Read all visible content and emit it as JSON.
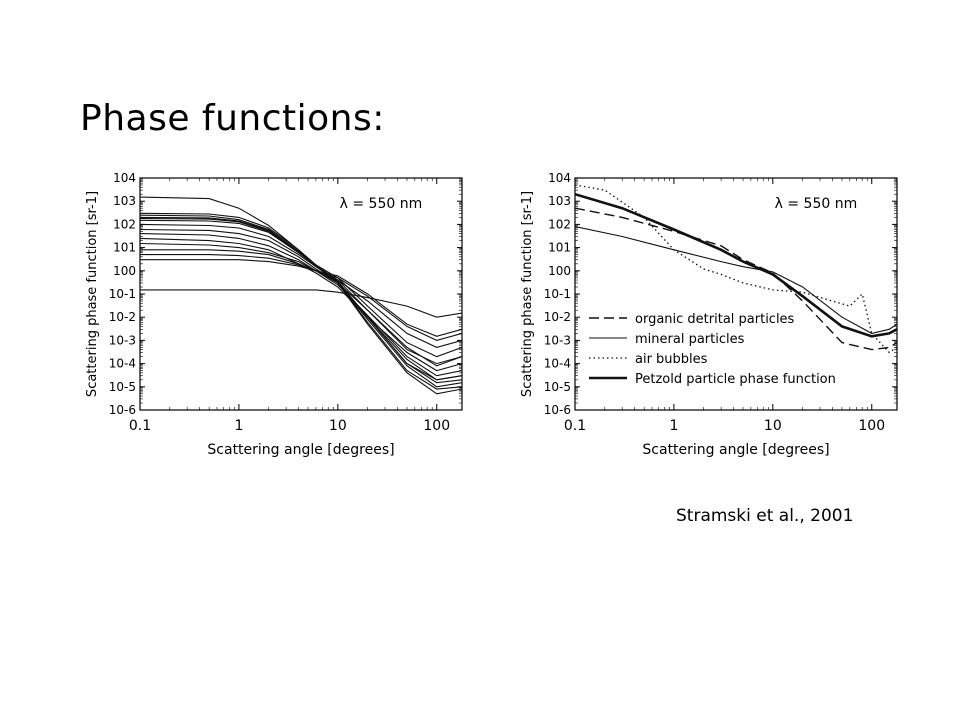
{
  "slide": {
    "title": "Phase functions:",
    "citation": "Stramski et al., 2001"
  },
  "chart_data": [
    {
      "type": "line",
      "xscale": "log",
      "yscale": "log",
      "xlim": [
        0.1,
        180
      ],
      "ylim": [
        1e-06,
        10000.0
      ],
      "xticks": [
        "0.1",
        "1",
        "10",
        "100"
      ],
      "yticks": [
        "10-6",
        "10-5",
        "10-4",
        "10-3",
        "10-2",
        "10-1",
        "100",
        "101",
        "102",
        "103",
        "104"
      ],
      "xlabel": "Scattering angle  [degrees]",
      "ylabel": "Scattering phase function  [sr-1]",
      "annotation": "λ = 550 nm",
      "series": [
        {
          "x": [
            0.1,
            0.5,
            1,
            2,
            4,
            6,
            10,
            20,
            50,
            100,
            180
          ],
          "y": [
            25,
            20,
            15,
            8,
            2,
            0.8,
            0.2,
            0.01,
            0.0003,
            5e-05,
            0.0001
          ]
        },
        {
          "x": [
            0.1,
            0.5,
            1,
            2,
            4,
            6,
            10,
            20,
            50,
            100,
            180
          ],
          "y": [
            15,
            13,
            10,
            6,
            2.5,
            1,
            0.3,
            0.02,
            0.0005,
            8e-05,
            0.0002
          ]
        },
        {
          "x": [
            0.1,
            0.5,
            1,
            2,
            4,
            6,
            10,
            20,
            50,
            100,
            180
          ],
          "y": [
            40,
            35,
            25,
            12,
            3,
            1,
            0.25,
            0.012,
            0.0002,
            3e-05,
            5e-05
          ]
        },
        {
          "x": [
            0.1,
            0.5,
            1,
            2,
            4,
            6,
            10,
            20,
            50,
            100,
            180
          ],
          "y": [
            60,
            55,
            40,
            20,
            4,
            1.2,
            0.3,
            0.01,
            0.00015,
            2e-05,
            3e-05
          ]
        },
        {
          "x": [
            0.1,
            0.5,
            1,
            2,
            4,
            6,
            10,
            20,
            50,
            100,
            180
          ],
          "y": [
            100,
            90,
            70,
            30,
            5,
            1.5,
            0.35,
            0.01,
            0.0001,
            1.5e-05,
            2e-05
          ]
        },
        {
          "x": [
            0.1,
            0.5,
            1,
            2,
            4,
            6,
            10,
            20,
            50,
            100,
            180
          ],
          "y": [
            150,
            140,
            110,
            45,
            6,
            1.6,
            0.3,
            0.008,
            8e-05,
            1e-05,
            1.5e-05
          ]
        },
        {
          "x": [
            0.1,
            0.5,
            1,
            2,
            4,
            6,
            10,
            20,
            50,
            100,
            180
          ],
          "y": [
            250,
            230,
            160,
            60,
            7,
            1.7,
            0.35,
            0.01,
            0.0001,
            2e-05,
            3e-05
          ]
        },
        {
          "x": [
            0.1,
            0.5,
            1,
            2,
            4,
            6,
            10,
            20,
            50,
            100,
            180
          ],
          "y": [
            180,
            170,
            130,
            50,
            6,
            1.8,
            0.5,
            0.03,
            0.0008,
            0.0002,
            0.0005
          ]
        },
        {
          "x": [
            0.1,
            0.5,
            1,
            2,
            4,
            6,
            10,
            20,
            50,
            100,
            180
          ],
          "y": [
            200,
            190,
            140,
            55,
            6.5,
            1.7,
            0.4,
            0.02,
            0.0004,
            0.0001,
            0.0002
          ]
        },
        {
          "x": [
            0.1,
            0.5,
            1,
            2,
            4,
            6,
            10,
            20,
            50,
            100,
            180
          ],
          "y": [
            300,
            280,
            200,
            70,
            8,
            1.8,
            0.3,
            0.006,
            5e-05,
            8e-06,
            1e-05
          ]
        },
        {
          "x": [
            0.1,
            0.5,
            1,
            2,
            4,
            6,
            10,
            20,
            50,
            100,
            180
          ],
          "y": [
            8,
            8,
            7,
            5,
            2,
            1,
            0.4,
            0.05,
            0.002,
            0.0005,
            0.001
          ]
        },
        {
          "x": [
            0.1,
            0.5,
            1,
            2,
            4,
            6,
            10,
            20,
            50,
            100,
            180
          ],
          "y": [
            5,
            5,
            4.5,
            3.5,
            1.8,
            1,
            0.5,
            0.08,
            0.004,
            0.001,
            0.002
          ]
        },
        {
          "x": [
            0.1,
            0.5,
            1,
            2,
            4,
            6,
            10,
            20,
            50,
            100,
            180
          ],
          "y": [
            3,
            3,
            3,
            2.5,
            1.6,
            1,
            0.6,
            0.1,
            0.005,
            0.0015,
            0.003
          ]
        },
        {
          "x": [
            0.1,
            0.5,
            1,
            2,
            4,
            6,
            10,
            20,
            50,
            100,
            180
          ],
          "y": [
            1500,
            1300,
            500,
            90,
            8,
            1.8,
            0.3,
            0.005,
            4e-05,
            5e-06,
            8e-06
          ]
        },
        {
          "x": [
            0.1,
            0.5,
            1,
            2,
            4,
            6,
            10,
            20,
            50,
            100,
            180
          ],
          "y": [
            0.15,
            0.15,
            0.15,
            0.15,
            0.15,
            0.15,
            0.12,
            0.07,
            0.03,
            0.01,
            0.015
          ]
        }
      ]
    },
    {
      "type": "line",
      "xscale": "log",
      "yscale": "log",
      "xlim": [
        0.1,
        180
      ],
      "ylim": [
        1e-06,
        10000.0
      ],
      "xticks": [
        "0.1",
        "1",
        "10",
        "100"
      ],
      "yticks": [
        "10-6",
        "10-5",
        "10-4",
        "10-3",
        "10-2",
        "10-1",
        "100",
        "101",
        "102",
        "103",
        "104"
      ],
      "xlabel": "Scattering angle  [degrees]",
      "ylabel": "Scattering phase function  [sr-1]",
      "annotation": "λ = 550 nm",
      "legend_position": "bottom-left",
      "series": [
        {
          "name": "organic detrital particles",
          "style": "dashed",
          "x": [
            0.1,
            0.3,
            1,
            3,
            5,
            10,
            20,
            50,
            100,
            150,
            180
          ],
          "y": [
            500,
            200,
            50,
            12,
            3,
            0.8,
            0.05,
            0.0008,
            0.0004,
            0.0005,
            0.0008
          ]
        },
        {
          "name": "mineral particles",
          "style": "solid-thin",
          "x": [
            0.1,
            0.3,
            1,
            3,
            5,
            10,
            20,
            50,
            100,
            150,
            180
          ],
          "y": [
            80,
            30,
            8,
            2.5,
            1.5,
            0.9,
            0.2,
            0.01,
            0.002,
            0.003,
            0.005
          ]
        },
        {
          "name": "air bubbles",
          "style": "dotted",
          "x": [
            0.1,
            0.2,
            0.5,
            1,
            2,
            3,
            5,
            10,
            20,
            40,
            60,
            80,
            100,
            150,
            180
          ],
          "y": [
            5000,
            3000,
            200,
            8,
            1.2,
            0.7,
            0.3,
            0.15,
            0.12,
            0.05,
            0.03,
            0.1,
            0.002,
            0.0003,
            0.0005
          ]
        },
        {
          "name": "Petzold particle phase function",
          "style": "solid-thick",
          "x": [
            0.1,
            0.3,
            1,
            3,
            5,
            10,
            20,
            50,
            100,
            150,
            180
          ],
          "y": [
            2000,
            500,
            60,
            8,
            2.5,
            0.7,
            0.08,
            0.004,
            0.0015,
            0.002,
            0.003
          ]
        }
      ]
    }
  ]
}
